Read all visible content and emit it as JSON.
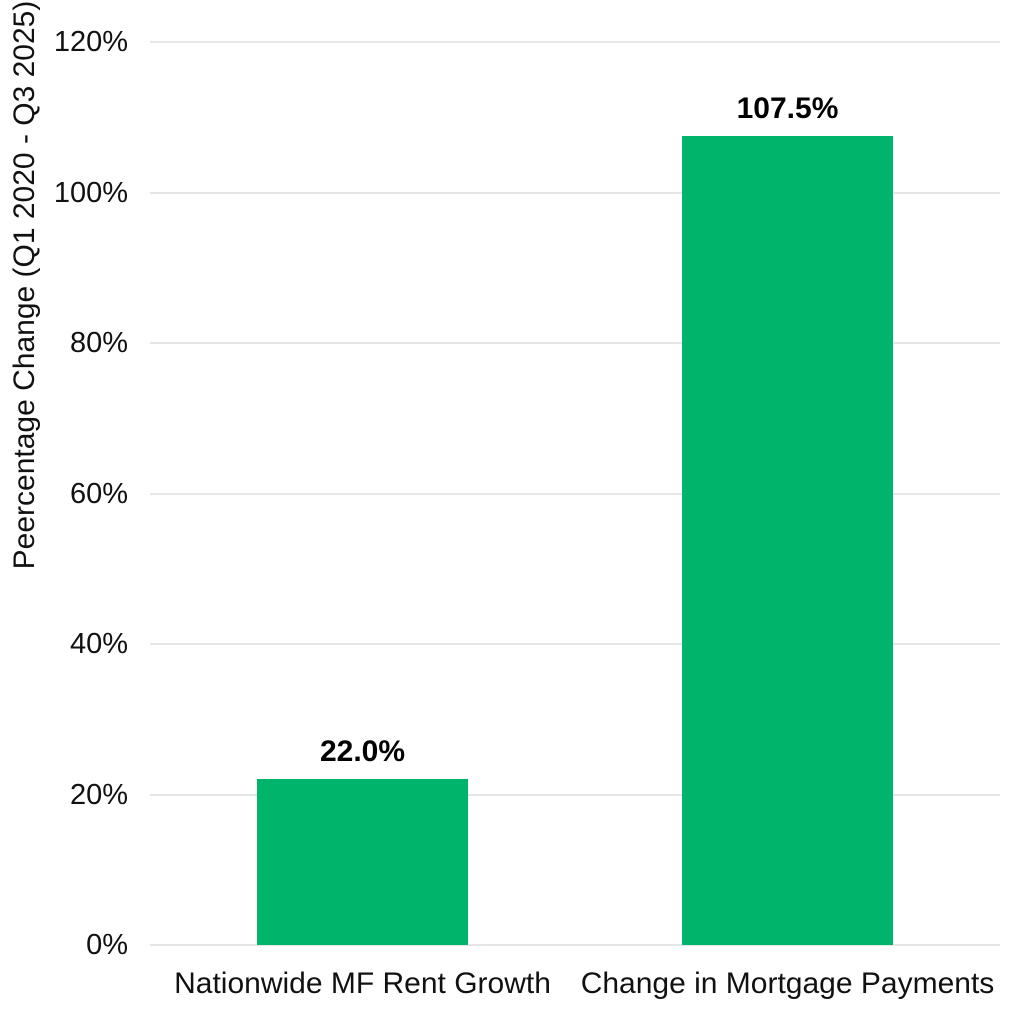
{
  "chart_data": {
    "type": "bar",
    "title": "",
    "xlabel": "",
    "ylabel": "Peercentage Change (Q1 2020 - Q3 2025)",
    "categories": [
      "Nationwide MF Rent Growth",
      "Change in Mortgage Payments"
    ],
    "values": [
      22.0,
      107.5
    ],
    "value_labels": [
      "22.0%",
      "107.5%"
    ],
    "ylim": [
      0,
      120
    ],
    "yticks": [
      0,
      20,
      40,
      60,
      80,
      100,
      120
    ],
    "ytick_labels": [
      "0%",
      "20%",
      "40%",
      "60%",
      "80%",
      "100%",
      "120%"
    ],
    "grid": true,
    "legend": false,
    "colors": {
      "bar": "#00b46c",
      "gridline": "#e6e6e6",
      "text": "#111111",
      "background": "#ffffff"
    }
  }
}
